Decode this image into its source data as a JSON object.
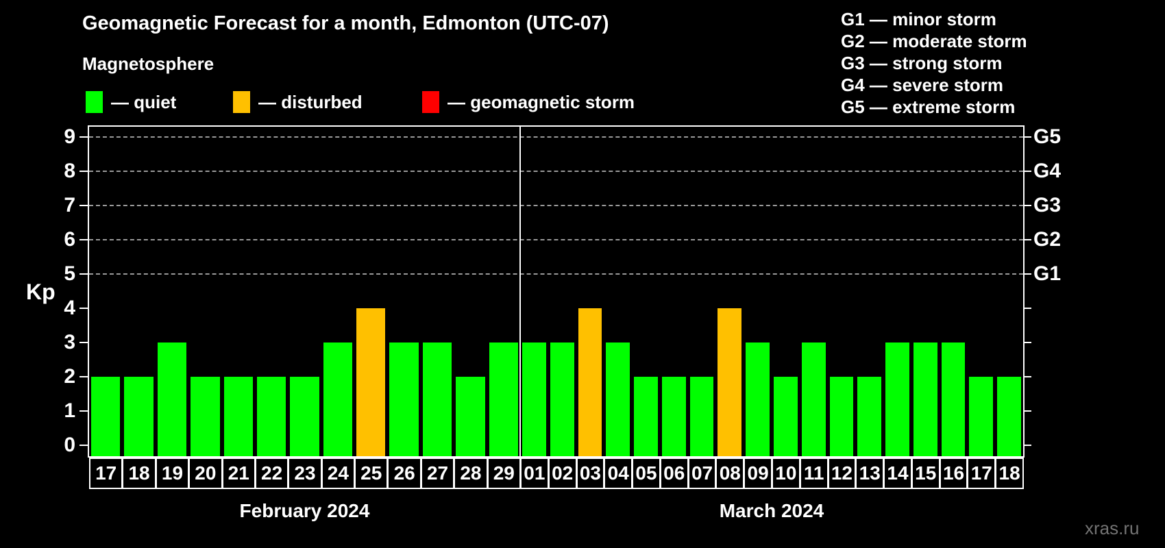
{
  "header": {
    "title": "Geomagnetic Forecast for a month, Edmonton (UTC-07)",
    "subtitle": "Magnetosphere"
  },
  "legend": {
    "items": [
      {
        "key": "quiet",
        "label": "— quiet",
        "color": "#00ff00"
      },
      {
        "key": "disturbed",
        "label": "— disturbed",
        "color": "#ffc000"
      },
      {
        "key": "storm",
        "label": "— geomagnetic storm",
        "color": "#ff0000"
      }
    ]
  },
  "g_scale_legend": {
    "lines": [
      "G1 — minor storm",
      "G2 — moderate storm",
      "G3 — strong storm",
      "G4 — severe storm",
      "G5 — extreme storm"
    ]
  },
  "watermark": "xras.ru",
  "chart_data": {
    "type": "bar",
    "title": "Geomagnetic Forecast for a month, Edmonton (UTC-07)",
    "xlabel": "",
    "ylabel": "Kp",
    "ylim": [
      0,
      9
    ],
    "y_ticks": [
      0,
      1,
      2,
      3,
      4,
      5,
      6,
      7,
      8,
      9
    ],
    "gridlines_at_kp": [
      5,
      6,
      7,
      8,
      9
    ],
    "grid": "dashed",
    "legend_position": "top-left",
    "right_axis_labels": {
      "5": "G1",
      "6": "G2",
      "7": "G3",
      "8": "G4",
      "9": "G5"
    },
    "level_colors": {
      "quiet": "#00ff00",
      "disturbed": "#ffc000",
      "storm": "#ff0000"
    },
    "months": [
      {
        "label": "February 2024",
        "days": [
          {
            "day": "17",
            "kp": 2,
            "level": "quiet"
          },
          {
            "day": "18",
            "kp": 2,
            "level": "quiet"
          },
          {
            "day": "19",
            "kp": 3,
            "level": "quiet"
          },
          {
            "day": "20",
            "kp": 2,
            "level": "quiet"
          },
          {
            "day": "21",
            "kp": 2,
            "level": "quiet"
          },
          {
            "day": "22",
            "kp": 2,
            "level": "quiet"
          },
          {
            "day": "23",
            "kp": 2,
            "level": "quiet"
          },
          {
            "day": "24",
            "kp": 3,
            "level": "quiet"
          },
          {
            "day": "25",
            "kp": 4,
            "level": "disturbed"
          },
          {
            "day": "26",
            "kp": 3,
            "level": "quiet"
          },
          {
            "day": "27",
            "kp": 3,
            "level": "quiet"
          },
          {
            "day": "28",
            "kp": 2,
            "level": "quiet"
          },
          {
            "day": "29",
            "kp": 3,
            "level": "quiet"
          }
        ]
      },
      {
        "label": "March 2024",
        "days": [
          {
            "day": "01",
            "kp": 3,
            "level": "quiet"
          },
          {
            "day": "02",
            "kp": 3,
            "level": "quiet"
          },
          {
            "day": "03",
            "kp": 4,
            "level": "disturbed"
          },
          {
            "day": "04",
            "kp": 3,
            "level": "quiet"
          },
          {
            "day": "05",
            "kp": 2,
            "level": "quiet"
          },
          {
            "day": "06",
            "kp": 2,
            "level": "quiet"
          },
          {
            "day": "07",
            "kp": 2,
            "level": "quiet"
          },
          {
            "day": "08",
            "kp": 4,
            "level": "disturbed"
          },
          {
            "day": "09",
            "kp": 3,
            "level": "quiet"
          },
          {
            "day": "10",
            "kp": 2,
            "level": "quiet"
          },
          {
            "day": "11",
            "kp": 3,
            "level": "quiet"
          },
          {
            "day": "12",
            "kp": 2,
            "level": "quiet"
          },
          {
            "day": "13",
            "kp": 2,
            "level": "quiet"
          },
          {
            "day": "14",
            "kp": 3,
            "level": "quiet"
          },
          {
            "day": "15",
            "kp": 3,
            "level": "quiet"
          },
          {
            "day": "16",
            "kp": 3,
            "level": "quiet"
          },
          {
            "day": "17",
            "kp": 2,
            "level": "quiet"
          },
          {
            "day": "18",
            "kp": 2,
            "level": "quiet"
          }
        ]
      }
    ]
  }
}
